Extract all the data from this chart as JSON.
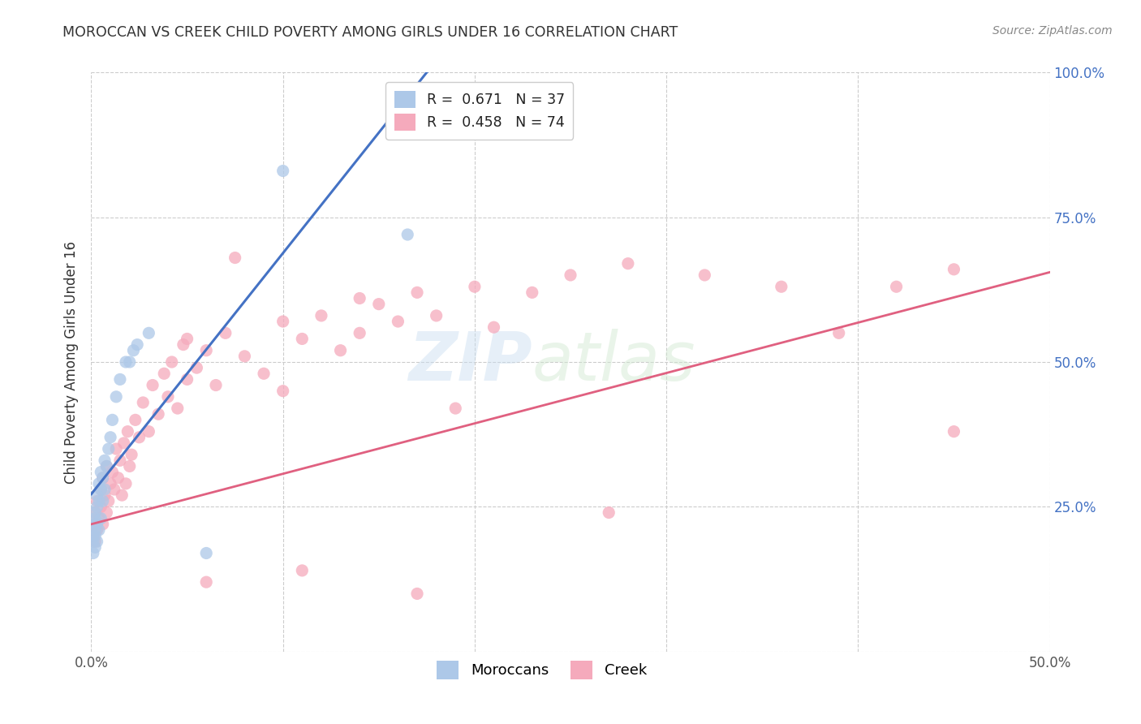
{
  "title": "MOROCCAN VS CREEK CHILD POVERTY AMONG GIRLS UNDER 16 CORRELATION CHART",
  "source": "Source: ZipAtlas.com",
  "ylabel": "Child Poverty Among Girls Under 16",
  "xlim": [
    0.0,
    0.5
  ],
  "ylim": [
    0.0,
    1.0
  ],
  "xtick_positions": [
    0.0,
    0.1,
    0.2,
    0.3,
    0.4,
    0.5
  ],
  "xticklabels": [
    "0.0%",
    "",
    "",
    "",
    "",
    "50.0%"
  ],
  "ytick_positions": [
    0.0,
    0.25,
    0.5,
    0.75,
    1.0
  ],
  "yticklabels_right": [
    "",
    "25.0%",
    "50.0%",
    "75.0%",
    "100.0%"
  ],
  "moroccan_color": "#adc8e8",
  "creek_color": "#f5aabc",
  "moroccan_line_color": "#4472c4",
  "creek_line_color": "#e06080",
  "legend_r_moroccan": "0.671",
  "legend_n_moroccan": "37",
  "legend_r_creek": "0.458",
  "legend_n_creek": "74",
  "moroccan_line_x0": 0.0,
  "moroccan_line_y0": 0.272,
  "moroccan_line_x1": 0.175,
  "moroccan_line_y1": 1.0,
  "creek_line_x0": 0.0,
  "creek_line_y0": 0.22,
  "creek_line_x1": 0.5,
  "creek_line_y1": 0.655,
  "moroccan_x": [
    0.001,
    0.001,
    0.001,
    0.001,
    0.002,
    0.002,
    0.002,
    0.002,
    0.002,
    0.003,
    0.003,
    0.003,
    0.003,
    0.004,
    0.004,
    0.004,
    0.005,
    0.005,
    0.005,
    0.006,
    0.006,
    0.007,
    0.007,
    0.008,
    0.009,
    0.01,
    0.011,
    0.013,
    0.015,
    0.018,
    0.02,
    0.022,
    0.024,
    0.03,
    0.06,
    0.1,
    0.165
  ],
  "moroccan_y": [
    0.17,
    0.19,
    0.2,
    0.22,
    0.18,
    0.2,
    0.21,
    0.23,
    0.24,
    0.19,
    0.22,
    0.25,
    0.27,
    0.21,
    0.26,
    0.29,
    0.23,
    0.28,
    0.31,
    0.26,
    0.3,
    0.28,
    0.33,
    0.32,
    0.35,
    0.37,
    0.4,
    0.44,
    0.47,
    0.5,
    0.5,
    0.52,
    0.53,
    0.55,
    0.17,
    0.83,
    0.72
  ],
  "creek_x": [
    0.001,
    0.001,
    0.002,
    0.002,
    0.003,
    0.003,
    0.004,
    0.005,
    0.005,
    0.006,
    0.006,
    0.007,
    0.008,
    0.008,
    0.009,
    0.01,
    0.011,
    0.012,
    0.013,
    0.014,
    0.015,
    0.016,
    0.017,
    0.018,
    0.019,
    0.02,
    0.021,
    0.023,
    0.025,
    0.027,
    0.03,
    0.032,
    0.035,
    0.038,
    0.04,
    0.042,
    0.045,
    0.048,
    0.05,
    0.055,
    0.06,
    0.065,
    0.07,
    0.08,
    0.09,
    0.1,
    0.11,
    0.12,
    0.13,
    0.14,
    0.15,
    0.16,
    0.17,
    0.18,
    0.2,
    0.21,
    0.23,
    0.25,
    0.28,
    0.32,
    0.36,
    0.39,
    0.42,
    0.45,
    0.05,
    0.075,
    0.1,
    0.14,
    0.19,
    0.27,
    0.06,
    0.11,
    0.17,
    0.45
  ],
  "creek_y": [
    0.2,
    0.22,
    0.19,
    0.24,
    0.21,
    0.26,
    0.23,
    0.25,
    0.28,
    0.22,
    0.3,
    0.27,
    0.24,
    0.32,
    0.26,
    0.29,
    0.31,
    0.28,
    0.35,
    0.3,
    0.33,
    0.27,
    0.36,
    0.29,
    0.38,
    0.32,
    0.34,
    0.4,
    0.37,
    0.43,
    0.38,
    0.46,
    0.41,
    0.48,
    0.44,
    0.5,
    0.42,
    0.53,
    0.47,
    0.49,
    0.52,
    0.46,
    0.55,
    0.51,
    0.48,
    0.57,
    0.54,
    0.58,
    0.52,
    0.55,
    0.6,
    0.57,
    0.62,
    0.58,
    0.63,
    0.56,
    0.62,
    0.65,
    0.67,
    0.65,
    0.63,
    0.55,
    0.63,
    0.66,
    0.54,
    0.68,
    0.45,
    0.61,
    0.42,
    0.24,
    0.12,
    0.14,
    0.1,
    0.38
  ],
  "background_color": "#ffffff",
  "grid_color": "#cccccc",
  "title_color": "#333333",
  "source_color": "#888888",
  "axis_label_color": "#333333",
  "right_tick_color": "#4472c4",
  "bottom_legend_labels": [
    "Moroccans",
    "Creek"
  ]
}
